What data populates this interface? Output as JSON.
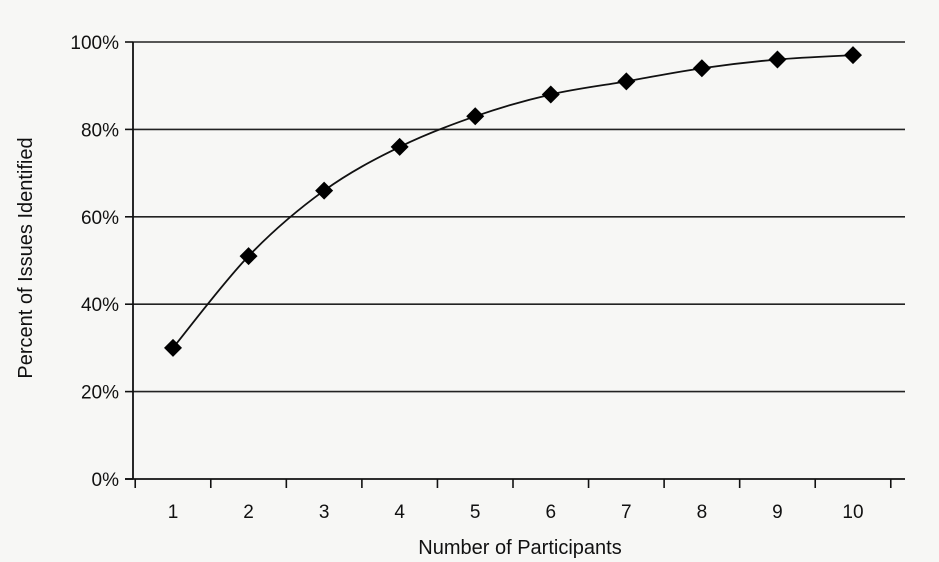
{
  "chart_data": {
    "type": "line",
    "title": "",
    "xlabel": "Number of Participants",
    "ylabel": "Percent of Issues Identified",
    "x": [
      1,
      2,
      3,
      4,
      5,
      6,
      7,
      8,
      9,
      10
    ],
    "series": [
      {
        "values": [
          30,
          51,
          66,
          76,
          83,
          88,
          91,
          94,
          96,
          97
        ]
      }
    ],
    "x_ticks": [
      "1",
      "2",
      "3",
      "4",
      "5",
      "6",
      "7",
      "8",
      "9",
      "10"
    ],
    "y_ticks": [
      "0%",
      "20%",
      "40%",
      "60%",
      "80%",
      "100%"
    ],
    "ylim": [
      0,
      100
    ],
    "grid": "horizontal",
    "marker": "diamond",
    "colors": {
      "line": "#111111",
      "marker": "#000000",
      "grid": "#222222"
    }
  }
}
